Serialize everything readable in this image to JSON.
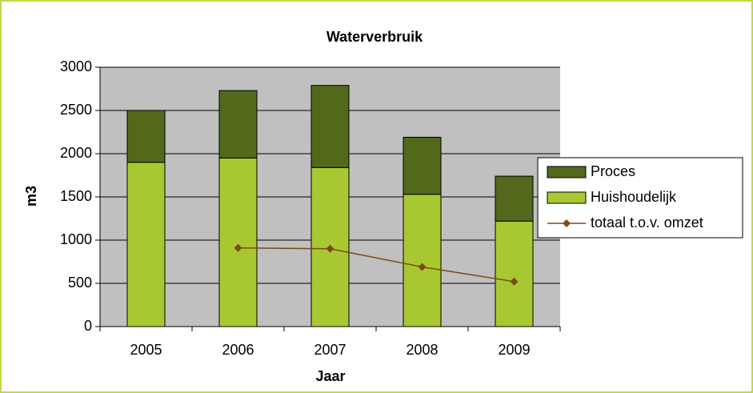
{
  "chart_data": {
    "type": "bar",
    "stacked": true,
    "title": "Waterverbruik",
    "x_label": "Jaar",
    "y_label": "m3",
    "categories": [
      "2005",
      "2006",
      "2007",
      "2008",
      "2009"
    ],
    "series": [
      {
        "name": "Proces",
        "color": "#52691c",
        "values": [
          600,
          780,
          950,
          660,
          520
        ]
      },
      {
        "name": "Huishoudelijk",
        "color": "#a8c832",
        "values": [
          1900,
          1950,
          1840,
          1530,
          1220
        ]
      },
      {
        "name": "totaal t.o.v. omzet",
        "type": "line",
        "color": "#7a4a14",
        "values": [
          null,
          910,
          900,
          690,
          520
        ]
      }
    ],
    "ylim": [
      0,
      3000
    ],
    "yticks": [
      0,
      500,
      1000,
      1500,
      2000,
      2500,
      3000
    ],
    "grid": true,
    "legend": "right"
  }
}
